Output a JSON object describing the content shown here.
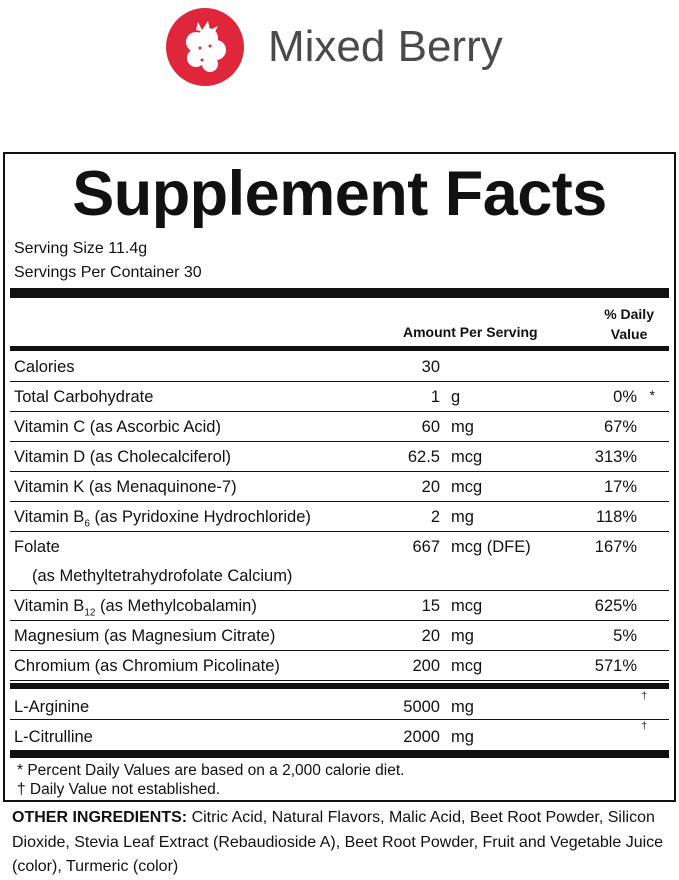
{
  "flavor": {
    "name": "Mixed Berry",
    "logo_color": "#e0263a",
    "icon": "raspberry-icon"
  },
  "panel": {
    "title": "Supplement Facts",
    "serving_size": "Serving Size 11.4g",
    "servings_per_container": "Servings Per Container 30",
    "header": {
      "amount": "Amount Per Serving",
      "dv_line1": "% Daily",
      "dv_line2": "Value"
    },
    "rows": [
      {
        "name": "Calories",
        "amount": "30",
        "unit": "",
        "dv": "",
        "mark": ""
      },
      {
        "name": "Total Carbohydrate",
        "amount": "1",
        "unit": "g",
        "dv": "0%",
        "mark": "*"
      },
      {
        "name": "Vitamin C (as Ascorbic Acid)",
        "amount": "60",
        "unit": "mg",
        "dv": "67%",
        "mark": ""
      },
      {
        "name": "Vitamin D (as Cholecalciferol)",
        "amount": "62.5",
        "unit": "mcg",
        "dv": "313%",
        "mark": ""
      },
      {
        "name": "Vitamin K (as Menaquinone-7)",
        "amount": "20",
        "unit": "mcg",
        "dv": "17%",
        "mark": ""
      },
      {
        "name_pre": "Vitamin B",
        "name_sub": "6",
        "name_post": " (as Pyridoxine Hydrochloride)",
        "amount": "2",
        "unit": "mg",
        "dv": "118%",
        "mark": ""
      },
      {
        "name": "Folate",
        "name2": "(as Methyltetrahydrofolate Calcium)",
        "amount": "667",
        "unit": "mcg (DFE)",
        "dv": "167%",
        "mark": ""
      },
      {
        "name_pre": "Vitamin B",
        "name_sub": "12",
        "name_post": " (as Methylcobalamin)",
        "amount": "15",
        "unit": "mcg",
        "dv": "625%",
        "mark": ""
      },
      {
        "name": "Magnesium (as Magnesium Citrate)",
        "amount": "20",
        "unit": "mg",
        "dv": "5%",
        "mark": ""
      },
      {
        "name": "Chromium (as Chromium Picolinate)",
        "amount": "200",
        "unit": "mcg",
        "dv": "571%",
        "mark": ""
      }
    ],
    "other_rows": [
      {
        "name": "L-Arginine",
        "amount": "5000",
        "unit": "mg",
        "mark": "†"
      },
      {
        "name": "L-Citrulline",
        "amount": "2000",
        "unit": "mg",
        "mark": "†"
      }
    ],
    "footnotes": [
      "* Percent Daily Values are based on a 2,000 calorie diet.",
      "† Daily Value not established."
    ]
  },
  "other_ingredients": {
    "label": "OTHER INGREDIENTS:",
    "text": " Citric Acid, Natural Flavors, Malic Acid, Beet Root Powder, Silicon Dioxide, Stevia Leaf Extract (Rebaudioside A), Beet Root Powder, Fruit and Vegetable Juice (color), Turmeric (color)"
  }
}
